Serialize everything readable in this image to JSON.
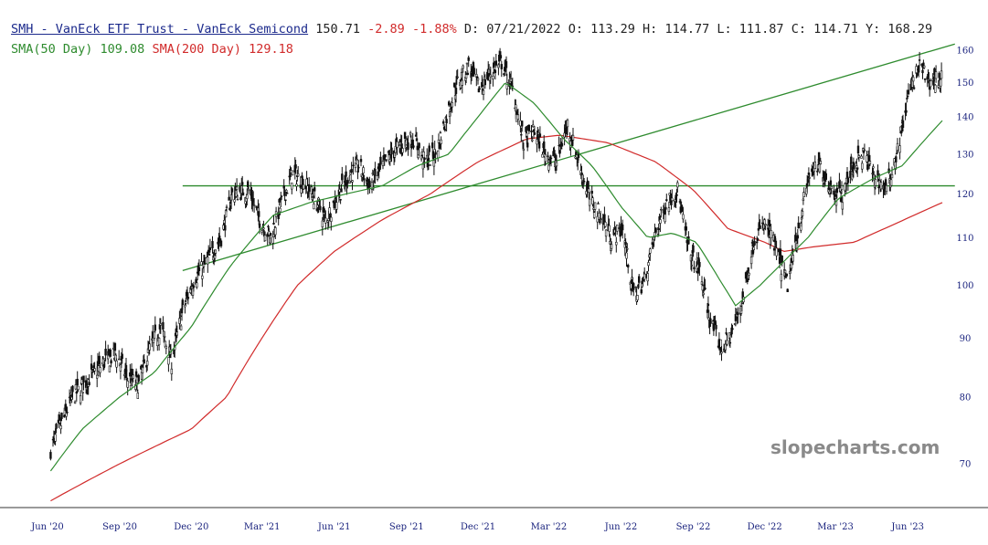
{
  "header": {
    "symbol": "SMH - VanEck ETF Trust - VanEck Semicond",
    "last": "150.71",
    "change": "-2.89",
    "change_pct": "-1.88%",
    "date_label": "D:",
    "date": "07/21/2022",
    "open_label": "O:",
    "open": "113.29",
    "high_label": "H:",
    "high": "114.77",
    "low_label": "L:",
    "low": "111.87",
    "close_label": "C:",
    "close": "114.71",
    "y_label": "Y:",
    "y_value": "168.29",
    "sma50_label": "SMA(50 Day)",
    "sma50_value": "109.08",
    "sma200_label": "SMA(200 Day)",
    "sma200_value": "129.18"
  },
  "watermark": "slopecharts.com",
  "colors": {
    "price": "#111111",
    "sma50": "#2e8b2e",
    "sma200": "#d12b2b",
    "trendline": "#2e8b2e",
    "axis_text": "#1a237e",
    "change_negative": "#d12b2b"
  },
  "chart_data": {
    "type": "line",
    "scale": "log",
    "yticks": [
      70,
      80,
      90,
      100,
      110,
      120,
      130,
      140,
      150,
      160
    ],
    "xticks": [
      "Jun '20",
      "Sep '20",
      "Dec '20",
      "Mar '21",
      "Jun '21",
      "Sep '21",
      "Dec '21",
      "Mar '22",
      "Jun '22",
      "Sep '22",
      "Dec '22",
      "Mar '23",
      "Jun '23"
    ],
    "x_start": "2020-06-01",
    "x_end": "2023-07-15",
    "series": [
      {
        "name": "SMH",
        "style": "candles",
        "points": [
          [
            "2020-06-05",
            72
          ],
          [
            "2020-06-19",
            76
          ],
          [
            "2020-07-03",
            80
          ],
          [
            "2020-07-17",
            82
          ],
          [
            "2020-07-31",
            84
          ],
          [
            "2020-08-14",
            86
          ],
          [
            "2020-08-28",
            87
          ],
          [
            "2020-09-11",
            83
          ],
          [
            "2020-09-25",
            82
          ],
          [
            "2020-10-09",
            88
          ],
          [
            "2020-10-23",
            92
          ],
          [
            "2020-11-06",
            86
          ],
          [
            "2020-11-20",
            95
          ],
          [
            "2020-12-04",
            101
          ],
          [
            "2020-12-18",
            104
          ],
          [
            "2021-01-08",
            110
          ],
          [
            "2021-01-22",
            120
          ],
          [
            "2021-02-12",
            121
          ],
          [
            "2021-02-26",
            114
          ],
          [
            "2021-03-12",
            110
          ],
          [
            "2021-03-26",
            118
          ],
          [
            "2021-04-09",
            125
          ],
          [
            "2021-04-23",
            123
          ],
          [
            "2021-05-07",
            119
          ],
          [
            "2021-05-21",
            114
          ],
          [
            "2021-06-04",
            119
          ],
          [
            "2021-06-18",
            124
          ],
          [
            "2021-07-02",
            127
          ],
          [
            "2021-07-16",
            122
          ],
          [
            "2021-07-30",
            126
          ],
          [
            "2021-08-13",
            130
          ],
          [
            "2021-08-27",
            133
          ],
          [
            "2021-09-10",
            134
          ],
          [
            "2021-09-24",
            128
          ],
          [
            "2021-10-08",
            130
          ],
          [
            "2021-10-22",
            140
          ],
          [
            "2021-11-05",
            150
          ],
          [
            "2021-11-19",
            155
          ],
          [
            "2021-12-03",
            148
          ],
          [
            "2021-12-17",
            153
          ],
          [
            "2021-12-31",
            156
          ],
          [
            "2022-01-14",
            148
          ],
          [
            "2022-01-28",
            133
          ],
          [
            "2022-02-11",
            136
          ],
          [
            "2022-02-25",
            130
          ],
          [
            "2022-03-11",
            128
          ],
          [
            "2022-03-25",
            138
          ],
          [
            "2022-04-08",
            128
          ],
          [
            "2022-04-22",
            119
          ],
          [
            "2022-05-06",
            115
          ],
          [
            "2022-05-20",
            110
          ],
          [
            "2022-06-03",
            112
          ],
          [
            "2022-06-17",
            98
          ],
          [
            "2022-07-01",
            101
          ],
          [
            "2022-07-15",
            111
          ],
          [
            "2022-07-29",
            118
          ],
          [
            "2022-08-12",
            121
          ],
          [
            "2022-08-26",
            107
          ],
          [
            "2022-09-09",
            103
          ],
          [
            "2022-09-23",
            93
          ],
          [
            "2022-10-07",
            88
          ],
          [
            "2022-10-21",
            91
          ],
          [
            "2022-11-04",
            98
          ],
          [
            "2022-11-18",
            110
          ],
          [
            "2022-12-02",
            113
          ],
          [
            "2022-12-16",
            107
          ],
          [
            "2022-12-30",
            100
          ],
          [
            "2023-01-13",
            112
          ],
          [
            "2023-01-27",
            125
          ],
          [
            "2023-02-10",
            127
          ],
          [
            "2023-02-24",
            121
          ],
          [
            "2023-03-10",
            120
          ],
          [
            "2023-03-24",
            127
          ],
          [
            "2023-04-07",
            130
          ],
          [
            "2023-04-21",
            124
          ],
          [
            "2023-05-05",
            121
          ],
          [
            "2023-05-19",
            131
          ],
          [
            "2023-06-02",
            146
          ],
          [
            "2023-06-16",
            155
          ],
          [
            "2023-06-30",
            150
          ],
          [
            "2023-07-14",
            152
          ]
        ]
      },
      {
        "name": "SMA(50 Day)",
        "points": [
          [
            "2020-06-05",
            69
          ],
          [
            "2020-07-15",
            75
          ],
          [
            "2020-09-01",
            80
          ],
          [
            "2020-10-15",
            84
          ],
          [
            "2020-12-01",
            92
          ],
          [
            "2021-01-20",
            104
          ],
          [
            "2021-03-15",
            115
          ],
          [
            "2021-05-01",
            118
          ],
          [
            "2021-06-15",
            120
          ],
          [
            "2021-08-01",
            122
          ],
          [
            "2021-09-15",
            127
          ],
          [
            "2021-10-25",
            130
          ],
          [
            "2021-12-01",
            140
          ],
          [
            "2022-01-05",
            150
          ],
          [
            "2022-02-10",
            144
          ],
          [
            "2022-03-20",
            134
          ],
          [
            "2022-04-25",
            127
          ],
          [
            "2022-06-01",
            117
          ],
          [
            "2022-07-05",
            110
          ],
          [
            "2022-08-05",
            111
          ],
          [
            "2022-09-05",
            109
          ],
          [
            "2022-10-05",
            101
          ],
          [
            "2022-10-25",
            96
          ],
          [
            "2022-11-25",
            100
          ],
          [
            "2022-12-20",
            104
          ],
          [
            "2023-01-25",
            110
          ],
          [
            "2023-03-05",
            119
          ],
          [
            "2023-04-20",
            124
          ],
          [
            "2023-05-25",
            127
          ],
          [
            "2023-07-15",
            139
          ]
        ]
      },
      {
        "name": "SMA(200 Day)",
        "points": [
          [
            "2020-06-05",
            65
          ],
          [
            "2020-09-01",
            70
          ],
          [
            "2020-12-01",
            75
          ],
          [
            "2021-01-15",
            80
          ],
          [
            "2021-03-01",
            90
          ],
          [
            "2021-04-15",
            100
          ],
          [
            "2021-06-01",
            107
          ],
          [
            "2021-08-01",
            114
          ],
          [
            "2021-10-01",
            120
          ],
          [
            "2021-12-01",
            128
          ],
          [
            "2022-02-01",
            134
          ],
          [
            "2022-03-15",
            135
          ],
          [
            "2022-05-15",
            133
          ],
          [
            "2022-07-15",
            128
          ],
          [
            "2022-09-01",
            121
          ],
          [
            "2022-10-15",
            112
          ],
          [
            "2022-12-01",
            109
          ],
          [
            "2022-12-25",
            107
          ],
          [
            "2023-02-01",
            108
          ],
          [
            "2023-03-25",
            109
          ],
          [
            "2023-05-15",
            113
          ],
          [
            "2023-07-15",
            118
          ]
        ]
      }
    ],
    "annotations": [
      {
        "kind": "trendline",
        "from": [
          "2020-11-20",
          103
        ],
        "to": [
          "2023-07-31",
          162
        ]
      },
      {
        "kind": "horizontal",
        "value": 122,
        "from": "2020-11-20",
        "to": "2023-07-31"
      }
    ]
  }
}
